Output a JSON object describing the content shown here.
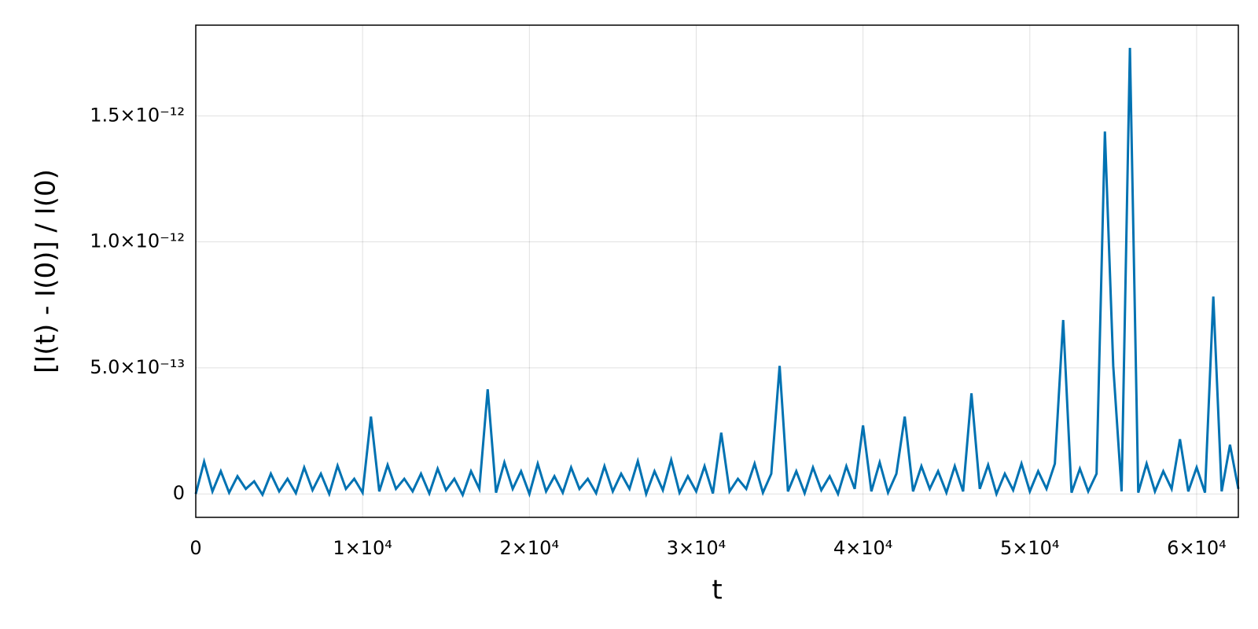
{
  "chart_data": {
    "type": "line",
    "xlabel": "t",
    "ylabel": "[I(t) - I(0)] / I(0)",
    "color": "#0072b2",
    "grid": true,
    "xlim": [
      0,
      62500
    ],
    "ylim": [
      -9.3e-14,
      1.86e-12
    ],
    "xticks": [
      0,
      {
        "value": 10000,
        "label": "1×10⁴"
      },
      {
        "value": 20000,
        "label": "2×10⁴"
      },
      {
        "value": 30000,
        "label": "3×10⁴"
      },
      {
        "value": 40000,
        "label": "4×10⁴"
      },
      {
        "value": 50000,
        "label": "5×10⁴"
      },
      {
        "value": 60000,
        "label": "6×10⁴"
      }
    ],
    "yticks": [
      0,
      {
        "value": 5e-13,
        "label": "5.0×10⁻¹³"
      },
      {
        "value": 1e-12,
        "label": "1.0×10⁻¹²"
      },
      {
        "value": 1.5e-12,
        "label": "1.5×10⁻¹²"
      }
    ],
    "x": [
      0,
      500,
      1000,
      1500,
      2000,
      2500,
      3000,
      3500,
      4000,
      4500,
      5000,
      5500,
      6000,
      6500,
      7000,
      7500,
      8000,
      8500,
      9000,
      9500,
      10000,
      10500,
      11000,
      11500,
      12000,
      12500,
      13000,
      13500,
      14000,
      14500,
      15000,
      15500,
      16000,
      16500,
      17000,
      17500,
      18000,
      18500,
      19000,
      19500,
      20000,
      20500,
      21000,
      21500,
      22000,
      22500,
      23000,
      23500,
      24000,
      24500,
      25000,
      25500,
      26000,
      26500,
      27000,
      27500,
      28000,
      28500,
      29000,
      29500,
      30000,
      30500,
      31000,
      31500,
      32000,
      32500,
      33000,
      33500,
      34000,
      34500,
      35000,
      35500,
      36000,
      36500,
      37000,
      37500,
      38000,
      38500,
      39000,
      39500,
      40000,
      40500,
      41000,
      41500,
      42000,
      42500,
      43000,
      43500,
      44000,
      44500,
      45000,
      45500,
      46000,
      46500,
      47000,
      47500,
      48000,
      48500,
      49000,
      49500,
      50000,
      50500,
      51000,
      51500,
      52000,
      52500,
      53000,
      53500,
      54000,
      54500,
      55000,
      55500,
      56000,
      56500,
      57000,
      57500,
      58000,
      58500,
      59000,
      59500,
      60000,
      60500,
      61000,
      61500,
      62000,
      62500
    ],
    "values": [
      0,
      1.28e-13,
      1e-14,
      9e-14,
      5e-15,
      7e-14,
      2e-14,
      5e-14,
      -3e-15,
      8e-14,
      1e-14,
      6e-14,
      3e-15,
      1.05e-13,
      1.5e-14,
      8e-14,
      0,
      1.12e-13,
      2e-14,
      6e-14,
      5e-15,
      3.07e-13,
      1e-14,
      1.15e-13,
      2e-14,
      6e-14,
      1e-14,
      8e-14,
      2e-15,
      1e-13,
      1.5e-14,
      6e-14,
      -4e-15,
      9e-14,
      2e-14,
      4.15e-13,
      5e-15,
      1.25e-13,
      2e-14,
      9e-14,
      0,
      1.2e-13,
      1e-14,
      7e-14,
      5e-15,
      1.05e-13,
      2e-14,
      6e-14,
      3e-15,
      1.1e-13,
      1e-14,
      8e-14,
      2e-14,
      1.3e-13,
      0,
      9e-14,
      1.5e-14,
      1.35e-13,
      5e-15,
      7e-14,
      1e-14,
      1.1e-13,
      2e-15,
      2.43e-13,
      1e-14,
      6e-14,
      2e-14,
      1.2e-13,
      5e-15,
      8e-14,
      5.08e-13,
      1e-14,
      9e-14,
      3e-15,
      1.05e-13,
      1.5e-14,
      7e-14,
      0,
      1.1e-13,
      2e-14,
      2.72e-13,
      1e-14,
      1.25e-13,
      5e-15,
      8e-14,
      3.07e-13,
      1e-14,
      1.1e-13,
      2e-14,
      9e-14,
      5e-15,
      1.1e-13,
      1e-14,
      3.99e-13,
      2e-14,
      1.15e-13,
      0,
      8e-14,
      1.5e-14,
      1.2e-13,
      1e-14,
      9e-14,
      2e-14,
      1.2e-13,
      6.9e-13,
      5e-15,
      1e-13,
      1e-14,
      8e-14,
      1.438e-12,
      5.08e-13,
      1e-14,
      1.77e-12,
      5e-15,
      1.2e-13,
      1e-14,
      9e-14,
      2e-14,
      2.17e-13,
      1e-14,
      1.05e-13,
      5e-15,
      7.83e-13,
      1e-14,
      1.95e-13,
      2e-14
    ]
  }
}
